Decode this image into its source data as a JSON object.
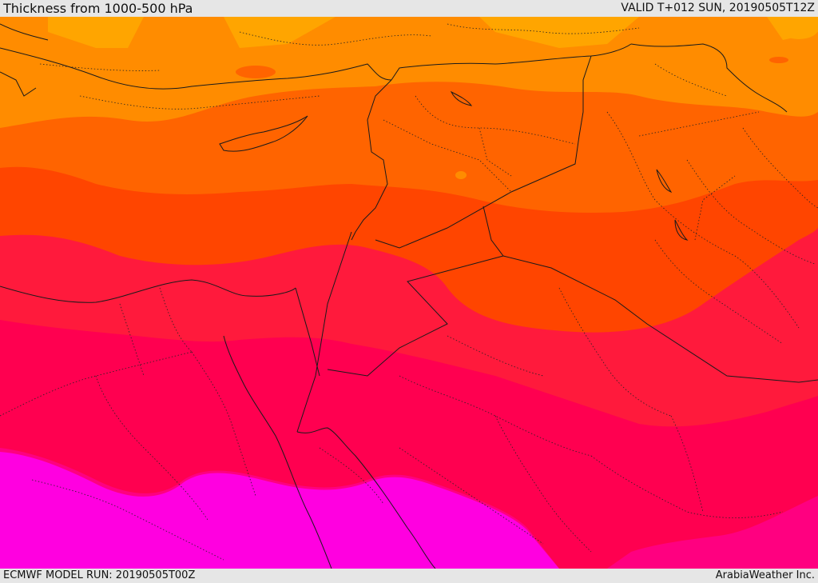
{
  "header": {
    "title": "Thickness from 1000-500 hPa",
    "valid": "VALID T+012 SUN, 20190505T12Z"
  },
  "footer": {
    "model_run": "ECMWF MODEL RUN: 20190505T00Z",
    "credit": "ArabiaWeather Inc."
  },
  "legend_colors": {
    "band_light_orange": "#ffa500",
    "band_orange": "#ff8c00",
    "band_dark_orange": "#ff6400",
    "band_red_orange": "#ff4500",
    "band_red": "#ff1a3c",
    "band_crimson": "#ff0050",
    "band_pink": "#ff0080",
    "band_magenta": "#ff00e0"
  }
}
